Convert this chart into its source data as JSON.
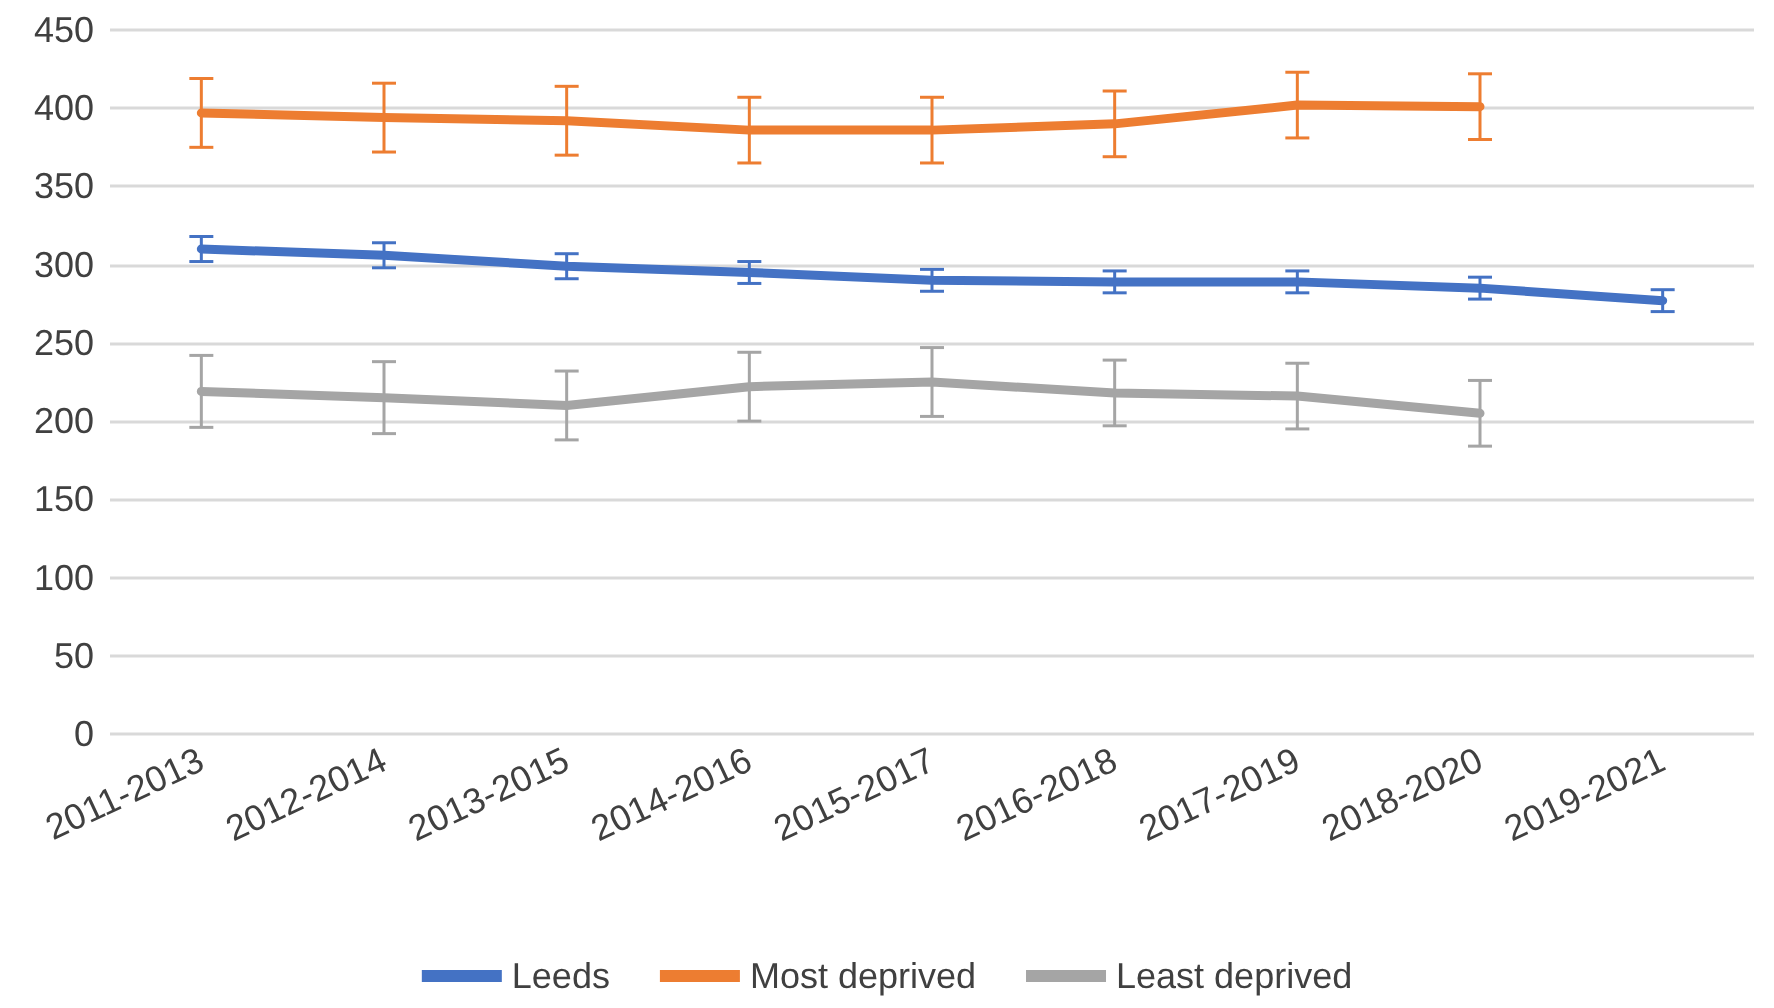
{
  "chart_data": {
    "type": "line",
    "categories": [
      "2011-2013",
      "2012-2014",
      "2013-2015",
      "2014-2016",
      "2015-2017",
      "2016-2018",
      "2017-2019",
      "2018-2020",
      "2019-2021"
    ],
    "series": [
      {
        "name": "Leeds",
        "color": "#4472c4",
        "values": [
          310,
          306,
          299,
          295,
          290,
          289,
          289,
          285,
          277
        ],
        "errors": [
          8,
          8,
          8,
          7,
          7,
          7,
          7,
          7,
          7
        ]
      },
      {
        "name": "Most deprived",
        "color": "#ed7d31",
        "values": [
          397,
          394,
          392,
          386,
          386,
          390,
          402,
          401,
          null
        ],
        "errors": [
          22,
          22,
          22,
          21,
          21,
          21,
          21,
          21,
          null
        ]
      },
      {
        "name": "Least deprived",
        "color": "#a5a5a5",
        "values": [
          219,
          215,
          210,
          222,
          225,
          218,
          216,
          205,
          null
        ],
        "errors": [
          23,
          23,
          22,
          22,
          22,
          21,
          21,
          21,
          null
        ]
      }
    ],
    "ylim": [
      0,
      450
    ],
    "yticks": [
      0,
      50,
      100,
      150,
      200,
      250,
      300,
      350,
      400,
      450
    ],
    "grid": "y",
    "legend": "bottom",
    "marker": "none",
    "line_style": "solid"
  }
}
